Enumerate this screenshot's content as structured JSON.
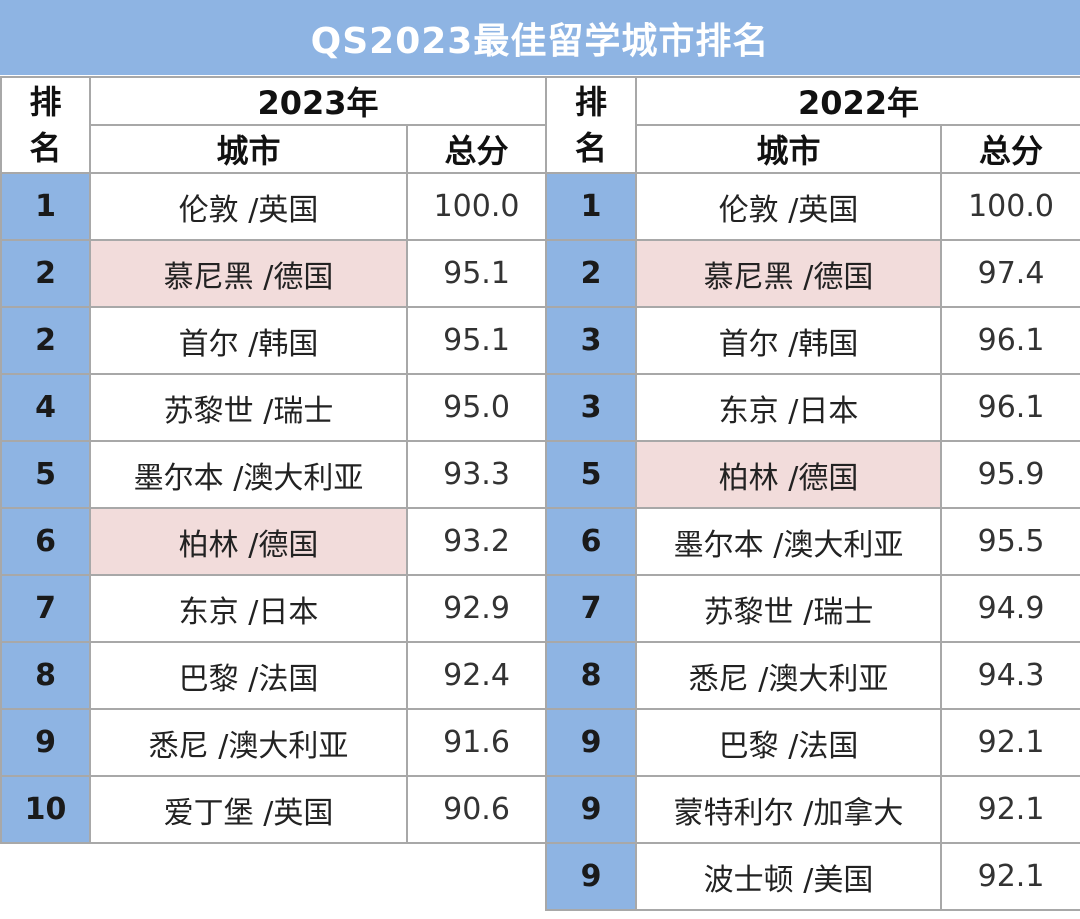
{
  "title": "QS2023最佳留学城市排名",
  "headers": {
    "rank_line1": "排",
    "rank_line2": "名",
    "city": "城市",
    "score": "总分"
  },
  "tables": [
    {
      "year": "2023年",
      "rows": [
        {
          "rank": "1",
          "city": "伦敦 /英国",
          "score": "100.0",
          "highlight": false
        },
        {
          "rank": "2",
          "city": "慕尼黑 /德国",
          "score": "95.1",
          "highlight": true
        },
        {
          "rank": "2",
          "city": "首尔 /韩国",
          "score": "95.1",
          "highlight": false
        },
        {
          "rank": "4",
          "city": "苏黎世 /瑞士",
          "score": "95.0",
          "highlight": false
        },
        {
          "rank": "5",
          "city": "墨尔本 /澳大利亚",
          "score": "93.3",
          "highlight": false
        },
        {
          "rank": "6",
          "city": "柏林 /德国",
          "score": "93.2",
          "highlight": true
        },
        {
          "rank": "7",
          "city": "东京 /日本",
          "score": "92.9",
          "highlight": false
        },
        {
          "rank": "8",
          "city": "巴黎 /法国",
          "score": "92.4",
          "highlight": false
        },
        {
          "rank": "9",
          "city": "悉尼 /澳大利亚",
          "score": "91.6",
          "highlight": false
        },
        {
          "rank": "10",
          "city": "爱丁堡 /英国",
          "score": "90.6",
          "highlight": false
        }
      ]
    },
    {
      "year": "2022年",
      "rows": [
        {
          "rank": "1",
          "city": "伦敦 /英国",
          "score": "100.0",
          "highlight": false
        },
        {
          "rank": "2",
          "city": "慕尼黑 /德国",
          "score": "97.4",
          "highlight": true
        },
        {
          "rank": "3",
          "city": "首尔 /韩国",
          "score": "96.1",
          "highlight": false
        },
        {
          "rank": "3",
          "city": "东京 /日本",
          "score": "96.1",
          "highlight": false
        },
        {
          "rank": "5",
          "city": "柏林 /德国",
          "score": "95.9",
          "highlight": true
        },
        {
          "rank": "6",
          "city": "墨尔本 /澳大利亚",
          "score": "95.5",
          "highlight": false
        },
        {
          "rank": "7",
          "city": "苏黎世 /瑞士",
          "score": "94.9",
          "highlight": false
        },
        {
          "rank": "8",
          "city": "悉尼 /澳大利亚",
          "score": "94.3",
          "highlight": false
        },
        {
          "rank": "9",
          "city": "巴黎 /法国",
          "score": "92.1",
          "highlight": false
        },
        {
          "rank": "9",
          "city": "蒙特利尔 /加拿大",
          "score": "92.1",
          "highlight": false
        },
        {
          "rank": "9",
          "city": "波士顿 /美国",
          "score": "92.1",
          "highlight": false
        }
      ]
    }
  ],
  "colors": {
    "header_blue": "#8eb4e3",
    "highlight_pink": "#f2dcdb",
    "grid": "#a8a8a8"
  }
}
